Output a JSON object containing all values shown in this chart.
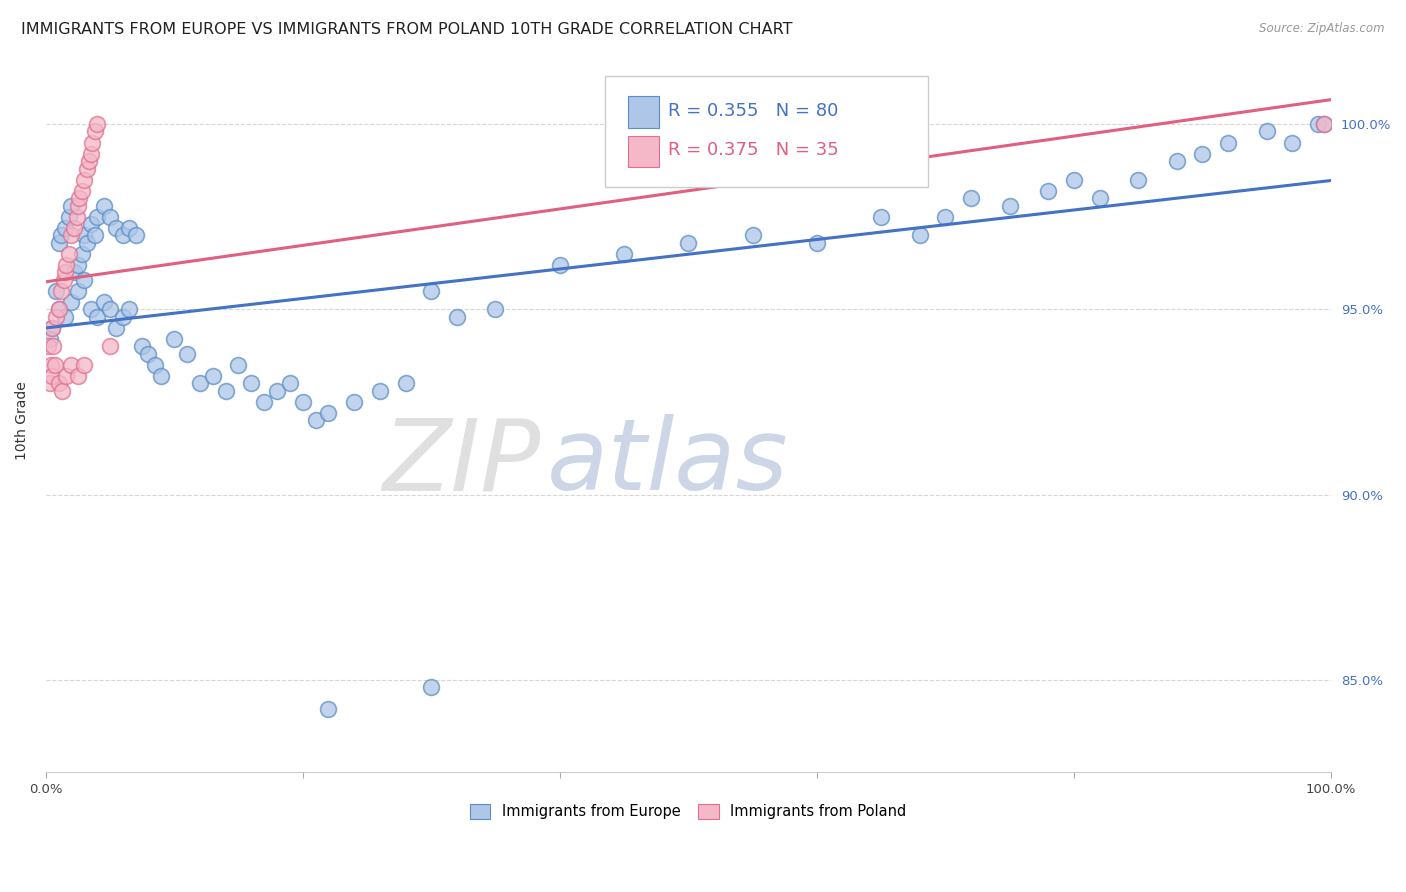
{
  "title": "IMMIGRANTS FROM EUROPE VS IMMIGRANTS FROM POLAND 10TH GRADE CORRELATION CHART",
  "source": "Source: ZipAtlas.com",
  "ylabel": "10th Grade",
  "blue_label": "Immigrants from Europe",
  "pink_label": "Immigrants from Poland",
  "blue_R": 0.355,
  "blue_N": 80,
  "pink_R": 0.375,
  "pink_N": 35,
  "blue_color": "#aec6e8",
  "pink_color": "#f4b8c8",
  "blue_edge_color": "#5b8ec4",
  "pink_edge_color": "#e07090",
  "blue_line_color": "#4472c4",
  "pink_line_color": "#e06080",
  "watermark_zip": "#c8d0d8",
  "watermark_atlas": "#a8c0e0",
  "background_color": "#ffffff",
  "grid_color": "#cccccc",
  "right_tick_color": "#4472c4",
  "title_fontsize": 11.5,
  "axis_label_fontsize": 10,
  "tick_fontsize": 9.5,
  "legend_fontsize": 13,
  "blue_x": [
    0.5,
    1.0,
    1.2,
    1.5,
    1.8,
    2.0,
    2.2,
    2.5,
    2.8,
    3.0,
    3.2,
    3.5,
    3.8,
    4.0,
    4.5,
    5.0,
    5.5,
    6.0,
    6.5,
    7.0,
    1.0,
    1.5,
    2.0,
    2.5,
    3.0,
    3.5,
    4.0,
    4.5,
    5.0,
    5.5,
    6.0,
    6.5,
    7.5,
    8.0,
    8.5,
    9.0,
    10.0,
    11.0,
    12.0,
    13.0,
    14.0,
    15.0,
    16.0,
    17.0,
    18.0,
    19.0,
    20.0,
    21.0,
    22.0,
    24.0,
    26.0,
    28.0,
    30.0,
    32.0,
    35.0,
    40.0,
    45.0,
    50.0,
    55.0,
    60.0,
    65.0,
    68.0,
    70.0,
    72.0,
    75.0,
    78.0,
    80.0,
    82.0,
    85.0,
    88.0,
    90.0,
    92.0,
    95.0,
    97.0,
    99.0,
    99.5,
    0.3,
    0.8,
    22.0,
    30.0
  ],
  "blue_y": [
    94.5,
    96.8,
    97.0,
    97.2,
    97.5,
    97.8,
    96.0,
    96.2,
    96.5,
    97.0,
    96.8,
    97.3,
    97.0,
    97.5,
    97.8,
    97.5,
    97.2,
    97.0,
    97.2,
    97.0,
    95.0,
    94.8,
    95.2,
    95.5,
    95.8,
    95.0,
    94.8,
    95.2,
    95.0,
    94.5,
    94.8,
    95.0,
    94.0,
    93.8,
    93.5,
    93.2,
    94.2,
    93.8,
    93.0,
    93.2,
    92.8,
    93.5,
    93.0,
    92.5,
    92.8,
    93.0,
    92.5,
    92.0,
    92.2,
    92.5,
    92.8,
    93.0,
    95.5,
    94.8,
    95.0,
    96.2,
    96.5,
    96.8,
    97.0,
    96.8,
    97.5,
    97.0,
    97.5,
    98.0,
    97.8,
    98.2,
    98.5,
    98.0,
    98.5,
    99.0,
    99.2,
    99.5,
    99.8,
    99.5,
    100.0,
    100.0,
    94.2,
    95.5,
    84.2,
    84.8
  ],
  "pink_x": [
    0.2,
    0.4,
    0.5,
    0.6,
    0.8,
    1.0,
    1.2,
    1.4,
    1.5,
    1.6,
    1.8,
    2.0,
    2.2,
    2.4,
    2.5,
    2.6,
    2.8,
    3.0,
    3.2,
    3.4,
    3.5,
    3.6,
    3.8,
    4.0,
    0.3,
    0.5,
    0.7,
    1.0,
    1.3,
    1.6,
    2.0,
    2.5,
    3.0,
    5.0,
    99.5
  ],
  "pink_y": [
    94.0,
    93.5,
    94.5,
    94.0,
    94.8,
    95.0,
    95.5,
    95.8,
    96.0,
    96.2,
    96.5,
    97.0,
    97.2,
    97.5,
    97.8,
    98.0,
    98.2,
    98.5,
    98.8,
    99.0,
    99.2,
    99.5,
    99.8,
    100.0,
    93.0,
    93.2,
    93.5,
    93.0,
    92.8,
    93.2,
    93.5,
    93.2,
    93.5,
    94.0,
    100.0
  ],
  "xlim": [
    0,
    100
  ],
  "ylim_bottom": 82.5,
  "ylim_top": 101.5,
  "yticks": [
    85.0,
    90.0,
    95.0,
    100.0
  ]
}
